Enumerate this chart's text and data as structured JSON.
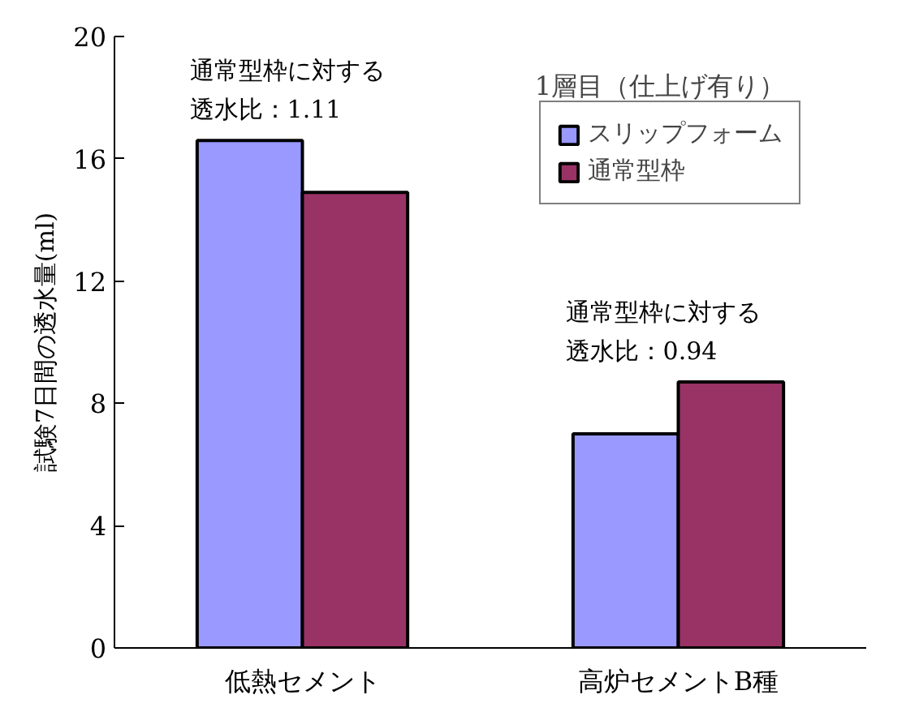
{
  "chart_data": {
    "type": "bar",
    "title": "1層目（仕上げ有り）",
    "ylabel": "試験7日間の透水量(ml)",
    "categories": [
      "低熱セメント",
      "高炉セメントB種"
    ],
    "series": [
      {
        "name": "スリップフォーム",
        "color": "#9999ff",
        "values": [
          16.6,
          7.0
        ]
      },
      {
        "name": "通常型枠",
        "color": "#993366",
        "values": [
          14.9,
          8.7
        ]
      }
    ],
    "ylim": [
      0,
      20
    ],
    "yticks": [
      0,
      4,
      8,
      12,
      16,
      20
    ],
    "grid": false,
    "legend": "top right",
    "annotations": [
      "通常型枠に対する",
      "透水比：1.11",
      "通常型枠に対する",
      "透水比：0.94"
    ]
  }
}
